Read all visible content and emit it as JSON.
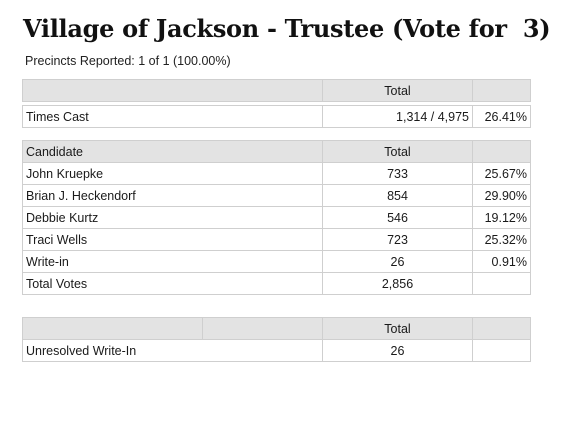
{
  "title": "Village of Jackson - Trustee (Vote for  3)",
  "precincts_reported": "Precincts Reported: 1 of 1 (100.00%)",
  "times_cast_table": {
    "header": "Total",
    "row_label": "Times Cast",
    "value": "1,314 / 4,975",
    "percent": "26.41%"
  },
  "candidates_table": {
    "col_candidate": "Candidate",
    "col_total": "Total",
    "rows": [
      {
        "name": "John Kruepke",
        "votes": "733",
        "percent": "25.67%"
      },
      {
        "name": "Brian J. Heckendorf",
        "votes": "854",
        "percent": "29.90%"
      },
      {
        "name": "Debbie Kurtz",
        "votes": "546",
        "percent": "19.12%"
      },
      {
        "name": "Traci Wells",
        "votes": "723",
        "percent": "25.32%"
      },
      {
        "name": "Write-in",
        "votes": "26",
        "percent": "0.91%"
      }
    ],
    "total_label": "Total Votes",
    "total_value": "2,856"
  },
  "unresolved_table": {
    "header": "Total",
    "row_label": "Unresolved Write-In",
    "value": "26"
  }
}
